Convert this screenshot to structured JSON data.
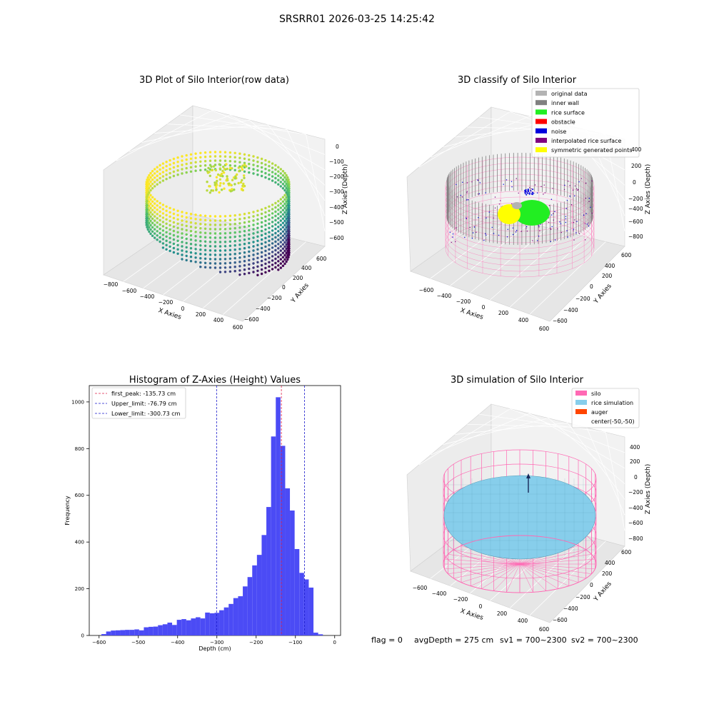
{
  "suptitle": "SRSRR01 2026-03-25 14:25:42",
  "status_line": {
    "flag": "flag = 0",
    "avg_depth": "avgDepth = 275 cm",
    "sv1": "sv1 = 700~2300",
    "sv2": "sv2 = 700~2300"
  },
  "colors": {
    "hist_bar": "#4b4bf5",
    "first_peak_line": "#e0204a",
    "limit_line": "#1a1acc",
    "original_data": "#b3b3b3",
    "inner_wall": "#808080",
    "rice_surface": "#22ee22",
    "obstacle": "#ff0000",
    "noise": "#0000dd",
    "interpolated_rice_surface": "#800080",
    "symmetric_generated_points": "#ffff00",
    "silo": "#ff69b4",
    "rice_simulation": "#87ceeb",
    "auger": "#ff4500"
  },
  "chart_data": [
    {
      "type": "scatter3d",
      "title": "3D Plot of Silo Interior(row data)",
      "xlabel": "X Axies",
      "ylabel": "Y Axies",
      "zlabel": "Z Axies (Depth)",
      "xticks": [
        "−800",
        "−600",
        "−400",
        "−200",
        "0",
        "200",
        "400",
        "600"
      ],
      "yticks": [
        "−600",
        "−400",
        "−200",
        "0",
        "200",
        "400",
        "600"
      ],
      "zticks": [
        "0",
        "−100",
        "−200",
        "−300",
        "−400",
        "−500",
        "−600"
      ],
      "colormap": "viridis"
    },
    {
      "type": "scatter3d",
      "title": "3D classify of Silo Interior",
      "xlabel": "X Axies",
      "ylabel": "Y Axies",
      "zlabel": "Z Axies (Depth)",
      "xticks": [
        "−600",
        "−400",
        "−200",
        "0",
        "200",
        "400",
        "600"
      ],
      "yticks": [
        "−600",
        "−400",
        "−200",
        "0",
        "200",
        "400",
        "600"
      ],
      "zticks": [
        "400",
        "200",
        "0",
        "−200",
        "−400",
        "−600",
        "−800"
      ],
      "legend": [
        {
          "name": "original data",
          "color_key": "original_data"
        },
        {
          "name": "inner wall",
          "color_key": "inner_wall"
        },
        {
          "name": "rice surface",
          "color_key": "rice_surface"
        },
        {
          "name": "obstacle",
          "color_key": "obstacle"
        },
        {
          "name": "noise",
          "color_key": "noise"
        },
        {
          "name": "interpolated rice surface",
          "color_key": "interpolated_rice_surface"
        },
        {
          "name": "symmetric generated points",
          "color_key": "symmetric_generated_points"
        }
      ],
      "legend_placement": "top-right"
    },
    {
      "type": "bar",
      "title": "Histogram of Z-Axies (Height) Values",
      "xlabel": "Depth (cm)",
      "ylabel": "Frequency",
      "xlim": [
        -625,
        15
      ],
      "ylim": [
        0,
        1070
      ],
      "xticks": [
        -600,
        -500,
        -400,
        -300,
        -200,
        -100,
        0
      ],
      "yticks": [
        0,
        200,
        400,
        600,
        800,
        1000
      ],
      "bin_width": 12,
      "bin_start": -594,
      "values": [
        6,
        17,
        21,
        22,
        23,
        24,
        24,
        26,
        22,
        35,
        37,
        38,
        44,
        48,
        55,
        45,
        67,
        70,
        65,
        73,
        78,
        73,
        98,
        95,
        97,
        108,
        120,
        135,
        160,
        168,
        210,
        250,
        300,
        345,
        430,
        550,
        852,
        1020,
        812,
        630,
        535,
        370,
        268,
        240,
        205,
        12,
        5
      ],
      "reference_lines": [
        {
          "label": "first_peak: -135.73 cm",
          "x": -135.73,
          "color_key": "first_peak_line"
        },
        {
          "label": "Upper_limit: -76.79 cm",
          "x": -76.79,
          "color_key": "limit_line"
        },
        {
          "label": "Lower_limit: -300.73 cm",
          "x": -300.73,
          "color_key": "limit_line"
        }
      ],
      "legend_placement": "top-left"
    },
    {
      "type": "surface3d",
      "title": "3D simulation of Silo Interior",
      "xlabel": "X Axies",
      "ylabel": "Y Axies",
      "zlabel": "Z Axies (Depth)",
      "xticks": [
        "−600",
        "−400",
        "−200",
        "0",
        "200",
        "400",
        "600"
      ],
      "yticks": [
        "−600",
        "−400",
        "−200",
        "0",
        "200",
        "400",
        "600"
      ],
      "zticks": [
        "400",
        "200",
        "0",
        "−200",
        "−400",
        "−600",
        "−800"
      ],
      "legend": [
        {
          "name": "silo",
          "color_key": "silo"
        },
        {
          "name": "rice simulation",
          "color_key": "rice_simulation"
        },
        {
          "name": "auger",
          "color_key": "auger"
        },
        {
          "name": "center(-50,-50)",
          "color_key": ""
        }
      ],
      "legend_placement": "top-right"
    }
  ]
}
